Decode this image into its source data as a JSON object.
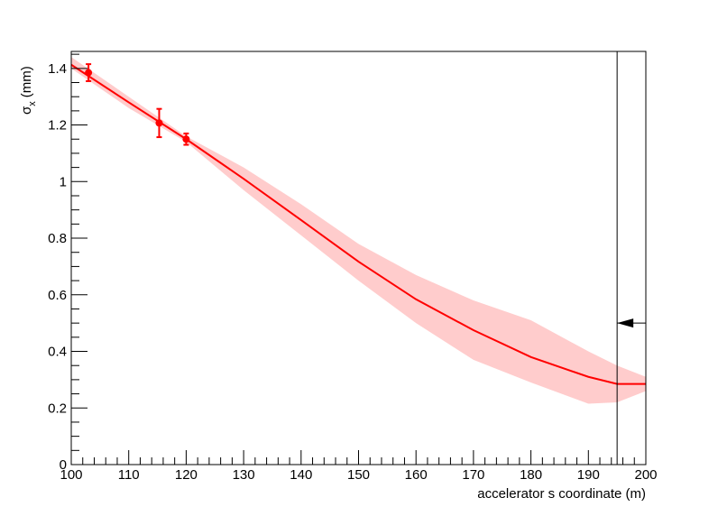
{
  "chart_data": {
    "type": "scatter",
    "x_label": "accelerator s coordinate (m)",
    "y_label": {
      "symbol": "σ",
      "subscript": "x",
      "unit": "(mm)"
    },
    "xlim": [
      100,
      200
    ],
    "xticks": [
      100,
      110,
      120,
      130,
      140,
      150,
      160,
      170,
      180,
      190,
      200
    ],
    "ylim": [
      0,
      1.46
    ],
    "yticks": [
      0,
      0.2,
      0.4,
      0.6,
      0.8,
      1,
      1.2,
      1.4
    ],
    "color": "#ff0000",
    "band_color": "#ffcccc",
    "points": {
      "x": [
        103,
        115.3,
        120
      ],
      "values": [
        1.385,
        1.207,
        1.15
      ],
      "errors": [
        0.03,
        0.05,
        0.02
      ]
    },
    "fit": {
      "x": [
        100,
        110,
        120,
        130,
        140,
        150,
        160,
        170,
        180,
        190,
        195,
        200
      ],
      "values": [
        1.413,
        1.28,
        1.15,
        1.01,
        0.864,
        0.717,
        0.584,
        0.475,
        0.38,
        0.31,
        0.285,
        0.285
      ],
      "upper": [
        1.44,
        1.3,
        1.16,
        1.05,
        0.92,
        0.78,
        0.67,
        0.58,
        0.51,
        0.4,
        0.35,
        0.31
      ],
      "lower": [
        1.4,
        1.26,
        1.14,
        0.97,
        0.81,
        0.65,
        0.5,
        0.37,
        0.29,
        0.215,
        0.22,
        0.26
      ]
    },
    "marker": {
      "x": 195,
      "y": 0.5
    }
  }
}
